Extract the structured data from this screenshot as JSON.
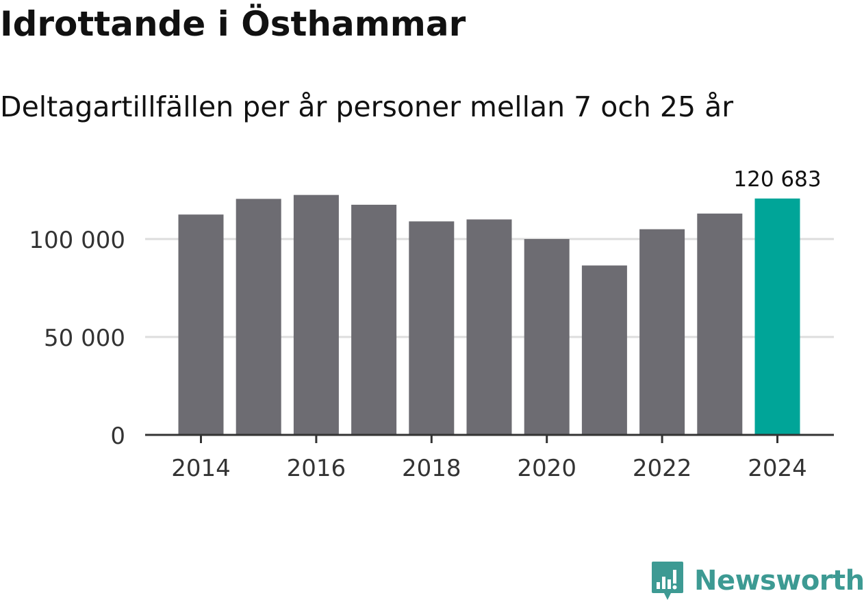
{
  "header": {
    "title": "Idrottande i Östhammar",
    "subtitle": "Deltagartillfällen per år personer mellan 7 och 25 år"
  },
  "brand": {
    "name": "Newsworthy",
    "color": "#3d9a93"
  },
  "colors": {
    "bar": "#6d6c72",
    "highlight": "#00a598",
    "grid": "#dddddd",
    "axis": "#333333",
    "text": "#333333"
  },
  "chart_data": {
    "type": "bar",
    "categories": [
      "2014",
      "2015",
      "2016",
      "2017",
      "2018",
      "2019",
      "2020",
      "2021",
      "2022",
      "2023",
      "2024"
    ],
    "values": [
      112500,
      120500,
      122500,
      117500,
      109000,
      110000,
      100000,
      86500,
      105000,
      113000,
      120683
    ],
    "highlight_index": 10,
    "highlight_label": "120 683",
    "x_tick_labels": [
      "2014",
      "2016",
      "2018",
      "2020",
      "2022",
      "2024"
    ],
    "y_ticks": [
      {
        "value": 0,
        "label": "0"
      },
      {
        "value": 50000,
        "label": "50 000"
      },
      {
        "value": 100000,
        "label": "100 000"
      }
    ],
    "ylim": [
      0,
      130000
    ],
    "grid": true
  }
}
